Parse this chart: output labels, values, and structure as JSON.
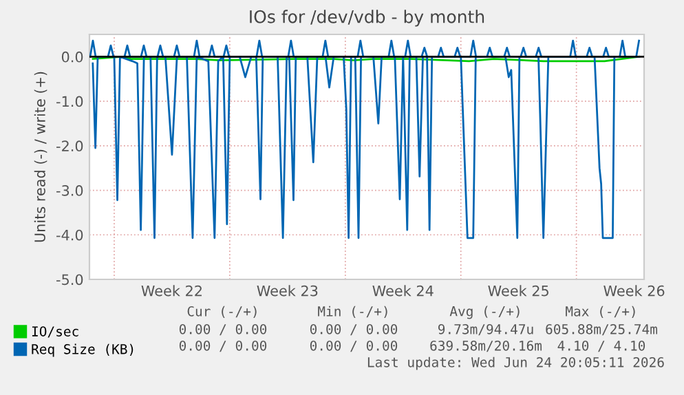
{
  "chart_data": {
    "type": "line",
    "title": "IOs for /dev/vdb - by month",
    "ylabel": "Units read (-) / write (+)",
    "xlim": [
      "2026-05-22T12:00",
      "2026-06-25T02:24"
    ],
    "ylim": [
      -5.0,
      0.5
    ],
    "xticks": [
      {
        "value": "2026-05-24T00:00",
        "label": null
      },
      {
        "value": "2026-05-27T12:00",
        "label": "Week 22"
      },
      {
        "value": "2026-05-31T00:00",
        "label": null
      },
      {
        "value": "2026-06-03T12:00",
        "label": "Week 23"
      },
      {
        "value": "2026-06-07T00:00",
        "label": null
      },
      {
        "value": "2026-06-10T12:00",
        "label": "Week 24"
      },
      {
        "value": "2026-06-14T00:00",
        "label": null
      },
      {
        "value": "2026-06-17T12:00",
        "label": "Week 25"
      },
      {
        "value": "2026-06-21T00:00",
        "label": null
      },
      {
        "value": "2026-06-24T12:00",
        "label": "Week 26"
      }
    ],
    "yticks": [
      {
        "value": -5,
        "label": "-5.0"
      },
      {
        "value": -4,
        "label": "-4.0"
      },
      {
        "value": -3,
        "label": "-3.0"
      },
      {
        "value": -2,
        "label": "-2.0"
      },
      {
        "value": -1,
        "label": "-1.0"
      },
      {
        "value": 0,
        "label": "0.0"
      }
    ],
    "grid": true,
    "legend": "bottom",
    "line_style": "solid",
    "marker": "none",
    "ref_lines": [
      {
        "axis": "y",
        "value": 0,
        "color": "#000000"
      }
    ],
    "series": [
      {
        "name": "IO/sec",
        "color": "#00cc00",
        "x": [
          "2026-05-22T17:00",
          "2026-05-24T12:00",
          "2026-05-25T00:00",
          "2026-05-26T02:00",
          "2026-05-28T22:00",
          "2026-05-30T10:00",
          "2026-06-04T00:00",
          "2026-06-06T07:00",
          "2026-06-07T12:00",
          "2026-06-08T17:00",
          "2026-06-10T05:00",
          "2026-06-11T00:00",
          "2026-06-14T12:00",
          "2026-06-16T00:00",
          "2026-06-19T00:00",
          "2026-06-22T17:00",
          "2026-06-24T19:00"
        ],
        "values": [
          -0.05,
          0,
          -0.05,
          -0.05,
          -0.05,
          -0.08,
          -0.05,
          -0.05,
          -0.08,
          -0.05,
          -0.05,
          -0.05,
          -0.1,
          -0.05,
          -0.1,
          -0.1,
          0
        ]
      },
      {
        "name": "Req Size (KB)",
        "color": "#0066b3",
        "x": [
          "2026-05-22T16:48",
          "2026-05-22T20:38",
          "2026-05-23T00:00",
          "2026-05-24T00:00",
          "2026-05-24T04:34",
          "2026-05-24T08:24",
          "2026-05-25T02:24",
          "2026-05-25T09:36",
          "2026-05-25T14:38",
          "2026-05-25T19:12",
          "2026-05-26T04:48",
          "2026-05-26T10:34",
          "2026-05-26T14:24",
          "2026-05-27T02:24",
          "2026-05-27T12:00",
          "2026-05-27T19:12",
          "2026-05-28T09:36",
          "2026-05-28T18:00",
          "2026-05-29T00:00",
          "2026-05-29T16:48",
          "2026-05-30T01:55",
          "2026-05-30T07:12",
          "2026-05-30T14:24",
          "2026-05-30T19:55",
          "2026-05-31T00:00",
          "2026-05-31T14:24",
          "2026-05-31T22:34",
          "2026-06-01T07:12",
          "2026-06-01T14:24",
          "2026-06-01T20:38",
          "2026-06-02T00:00",
          "2026-06-02T21:36",
          "2026-06-03T05:17",
          "2026-06-03T10:48",
          "2026-06-03T14:24",
          "2026-06-03T20:38",
          "2026-06-04T00:00",
          "2026-06-04T16:48",
          "2026-06-05T01:26",
          "2026-06-05T07:12",
          "2026-06-05T19:12",
          "2026-06-06T00:43",
          "2026-06-06T07:12",
          "2026-06-06T21:36",
          "2026-06-07T01:26",
          "2026-06-07T04:48",
          "2026-06-07T08:24",
          "2026-06-07T14:24",
          "2026-06-07T19:12",
          "2026-06-07T22:48",
          "2026-06-08T16:48",
          "2026-06-09T00:00",
          "2026-06-09T04:48",
          "2026-06-10T00:00",
          "2026-06-10T07:12",
          "2026-06-10T12:00",
          "2026-06-10T18:00",
          "2026-06-10T21:36",
          "2026-06-11T07:12",
          "2026-06-11T12:00",
          "2026-06-11T16:48",
          "2026-06-11T22:48",
          "2026-06-12T02:24",
          "2026-06-12T06:00",
          "2026-06-14T00:00",
          "2026-06-14T09:36",
          "2026-06-14T18:00",
          "2026-06-14T21:36",
          "2026-06-16T16:48",
          "2026-06-16T21:36",
          "2026-06-17T01:12",
          "2026-06-17T10:05",
          "2026-06-17T13:12",
          "2026-06-18T16:48",
          "2026-06-18T19:12",
          "2026-06-19T00:00",
          "2026-06-19T07:12",
          "2026-06-22T02:24",
          "2026-06-22T09:36",
          "2026-06-22T12:00",
          "2026-06-22T14:24",
          "2026-06-23T04:48",
          "2026-06-23T07:12",
          "2026-06-24T19:12"
        ],
        "values": [
          -0.15,
          -2.05,
          0,
          0,
          -3.22,
          0,
          -0.1,
          -0.15,
          -3.89,
          0,
          0,
          -4.07,
          0,
          0,
          -2.2,
          0,
          0,
          -4.07,
          0,
          -0.1,
          -4.07,
          -0.1,
          0,
          -3.76,
          0,
          0,
          -0.46,
          0,
          0,
          -3.2,
          0,
          0,
          -4.07,
          0,
          0,
          -3.22,
          0,
          0,
          -2.37,
          0,
          0,
          -0.69,
          0,
          0,
          -1.18,
          -4.07,
          0,
          0,
          -4.07,
          0,
          0,
          -1.5,
          0,
          0,
          -3.2,
          0,
          -3.89,
          0,
          0,
          -2.69,
          0,
          0,
          -3.89,
          0,
          0,
          -4.07,
          -4.07,
          0,
          0,
          -0.46,
          -0.3,
          -4.07,
          0,
          0,
          -1.28,
          -4.07,
          0,
          0,
          -2.5,
          -2.86,
          -4.07,
          -4.07,
          0,
          0
        ]
      },
      {
        "color": "#0066b3",
        "x": [
          "2026-05-22T13:00",
          "2026-05-22T17:00",
          "2026-05-22T21:00",
          "2026-05-23T15:00",
          "2026-05-23T19:00",
          "2026-05-23T23:00",
          "2026-05-24T15:00",
          "2026-05-24T19:00",
          "2026-05-24T23:00",
          "2026-05-25T15:00",
          "2026-05-25T19:00",
          "2026-05-25T23:00",
          "2026-05-26T15:00",
          "2026-05-26T19:00",
          "2026-05-26T23:00",
          "2026-05-27T15:00",
          "2026-05-27T19:00",
          "2026-05-27T23:00",
          "2026-05-28T20:00",
          "2026-05-29T00:00",
          "2026-05-29T04:00",
          "2026-05-29T18:00",
          "2026-05-29T22:00",
          "2026-05-30T02:00",
          "2026-05-30T15:00",
          "2026-05-30T19:00",
          "2026-05-30T23:00",
          "2026-06-01T15:00",
          "2026-06-01T19:00",
          "2026-06-01T23:00",
          "2026-06-03T13:00",
          "2026-06-03T17:00",
          "2026-06-03T21:00",
          "2026-06-05T15:00",
          "2026-06-05T19:00",
          "2026-06-05T23:00",
          "2026-06-07T18:00",
          "2026-06-07T22:00",
          "2026-06-08T02:00",
          "2026-06-09T15:00",
          "2026-06-09T19:00",
          "2026-06-09T23:00",
          "2026-06-10T15:00",
          "2026-06-10T19:00",
          "2026-06-10T23:00",
          "2026-06-11T15:00",
          "2026-06-11T19:00",
          "2026-06-11T23:00",
          "2026-06-12T15:00",
          "2026-06-12T19:00",
          "2026-06-12T23:00",
          "2026-06-13T15:00",
          "2026-06-13T19:00",
          "2026-06-13T23:00",
          "2026-06-14T14:00",
          "2026-06-14T18:00",
          "2026-06-14T22:00",
          "2026-06-15T14:00",
          "2026-06-15T18:00",
          "2026-06-15T22:00",
          "2026-06-16T15:00",
          "2026-06-16T19:00",
          "2026-06-16T23:00",
          "2026-06-17T15:00",
          "2026-06-17T19:00",
          "2026-06-17T23:00",
          "2026-06-18T13:00",
          "2026-06-18T17:00",
          "2026-06-18T21:00",
          "2026-06-20T15:00",
          "2026-06-20T19:00",
          "2026-06-20T23:00",
          "2026-06-21T15:00",
          "2026-06-21T19:00",
          "2026-06-21T23:00",
          "2026-06-22T15:00",
          "2026-06-22T19:00",
          "2026-06-22T23:00",
          "2026-06-23T15:00",
          "2026-06-23T19:00",
          "2026-06-23T23:00",
          "2026-06-24T15:00",
          "2026-06-24T19:00"
        ],
        "values": [
          0,
          0.36,
          0,
          0,
          0.25,
          0,
          0,
          0.25,
          0,
          0,
          0.25,
          0,
          0,
          0.25,
          0,
          0,
          0.25,
          0,
          0,
          0.36,
          0,
          0,
          0.25,
          0,
          0,
          0.25,
          0,
          0,
          0.36,
          0,
          0,
          0.36,
          0,
          0,
          0.36,
          0,
          0,
          0.36,
          0,
          0,
          0.36,
          0,
          0,
          0.36,
          0,
          0,
          0.2,
          0,
          0,
          0.2,
          0,
          0,
          0.2,
          0,
          0,
          0.36,
          0,
          0,
          0.2,
          0,
          0,
          0.2,
          0,
          0,
          0.2,
          0,
          0,
          0.2,
          0,
          0,
          0.36,
          0,
          0,
          0.2,
          0,
          0,
          0.2,
          0,
          0,
          0.36,
          0,
          0,
          0.36
        ]
      }
    ],
    "annotations": [
      "Cur (-/+)",
      "Min (-/+)",
      "Avg (-/+)",
      "Max (-/+)",
      "0.00 / 0.00",
      "0.00 / 0.00",
      "9.73m/94.47u",
      "605.88m/25.74m",
      "0.00 / 0.00",
      "0.00 / 0.00",
      "639.58m/20.16m",
      "4.10 / 4.10",
      "Last update: Wed Jun 24 20:05:11 2026"
    ]
  }
}
